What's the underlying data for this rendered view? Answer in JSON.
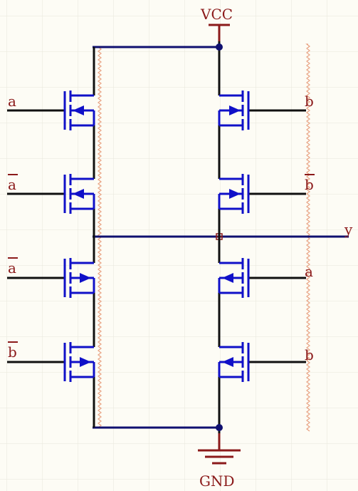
{
  "labels": {
    "vcc": "VCC",
    "gnd": "GND",
    "output": "y",
    "left_inputs": [
      "a",
      "a",
      "a",
      "b"
    ],
    "left_inverted": [
      false,
      true,
      true,
      true
    ],
    "right_inputs": [
      "b",
      "b",
      "a",
      "b"
    ],
    "right_inverted": [
      false,
      true,
      false,
      false
    ]
  },
  "colors": {
    "mos": "#1010c8",
    "net": "#101070",
    "input_wire": "#101010",
    "power": "#8b1a1a",
    "label": "#8b1a1a",
    "grid": "#e8e6da",
    "background": "#fdfcf5"
  }
}
